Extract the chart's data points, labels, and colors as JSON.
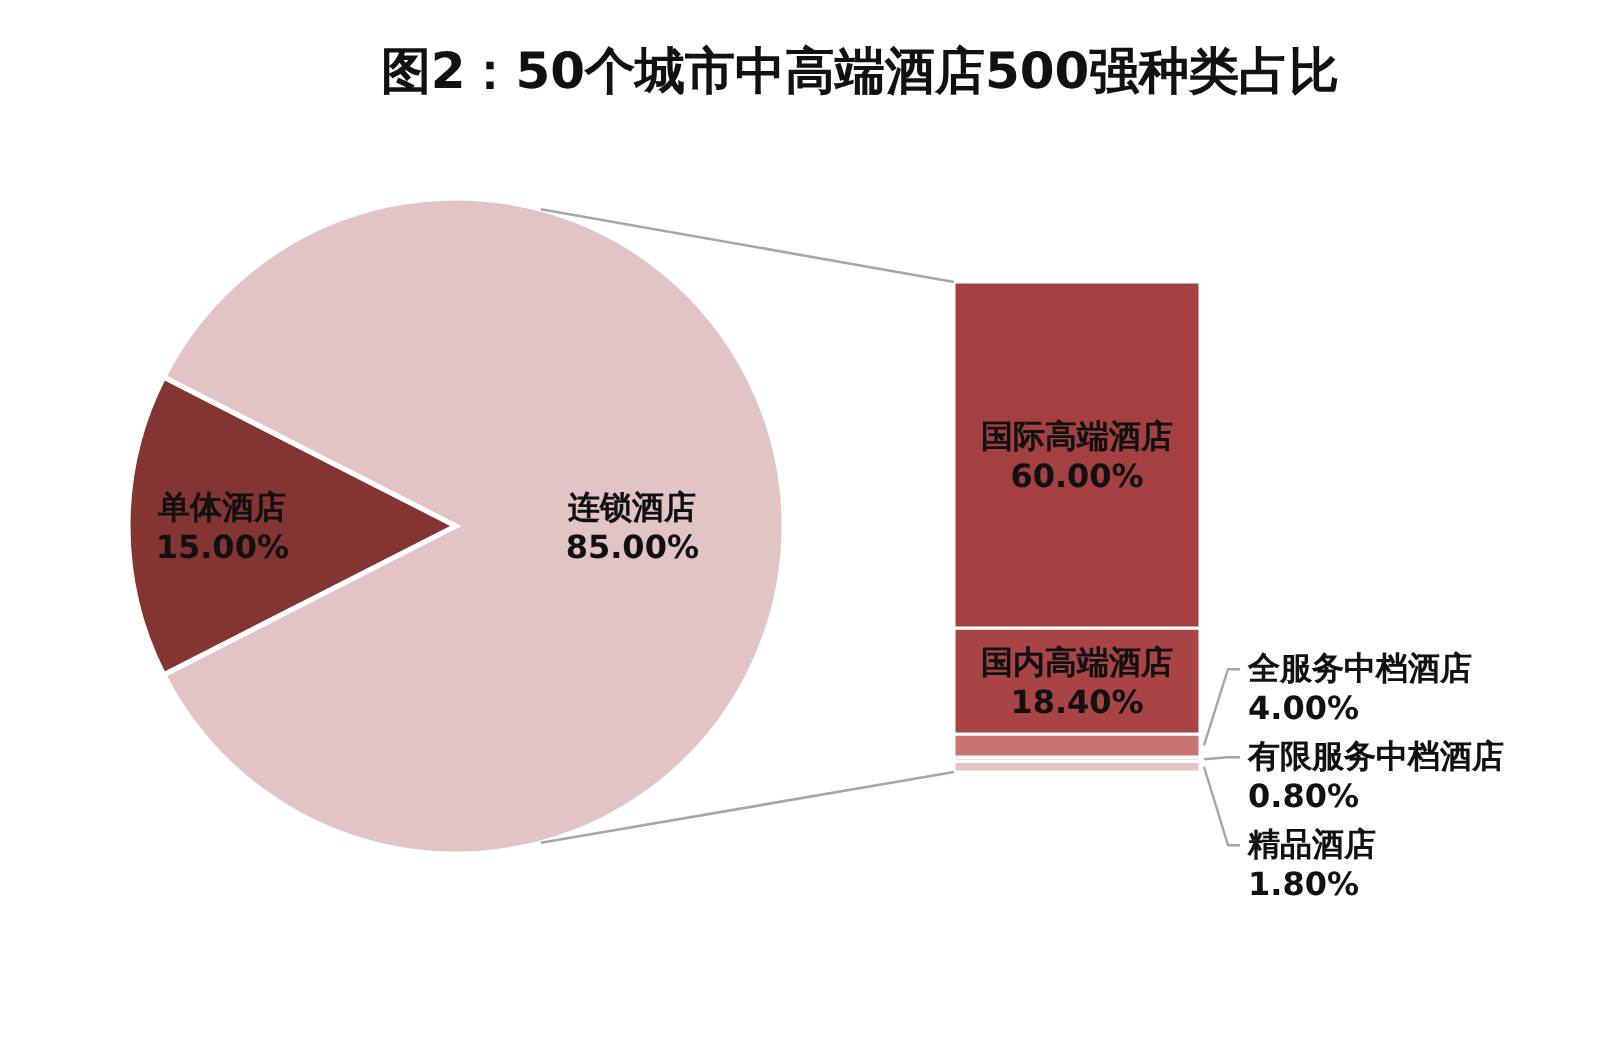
{
  "chart_data": [
    {
      "type": "pie",
      "title": "图2：50个城市中高端酒店500强种类占比",
      "categories": [
        "单体酒店",
        "连锁酒店"
      ],
      "values": [
        15,
        85
      ],
      "value_labels": [
        "15.00%",
        "85.00%"
      ],
      "colors": [
        "#843532",
        "#e2c4c5"
      ]
    },
    {
      "type": "bar",
      "stacked": true,
      "categories": [
        null
      ],
      "series": [
        {
          "name": "精品酒店",
          "color": "#e6c3c3",
          "values": [
            1.8
          ],
          "value_labels": [
            "1.80%"
          ]
        },
        {
          "name": "有限服务中档酒店",
          "color": "#f2dede",
          "values": [
            0.8
          ],
          "value_labels": [
            "0.80%"
          ]
        },
        {
          "name": "全服务中档酒店",
          "color": "#c87272",
          "values": [
            4
          ],
          "value_labels": [
            "4.00%"
          ]
        },
        {
          "name": "国内高端酒店",
          "color": "#a84444",
          "values": [
            18.4
          ],
          "value_labels": [
            "18.40%"
          ]
        },
        {
          "name": "国际高端酒店",
          "color": "#a54040",
          "values": [
            60
          ],
          "value_labels": [
            "60.00%"
          ]
        }
      ]
    }
  ]
}
